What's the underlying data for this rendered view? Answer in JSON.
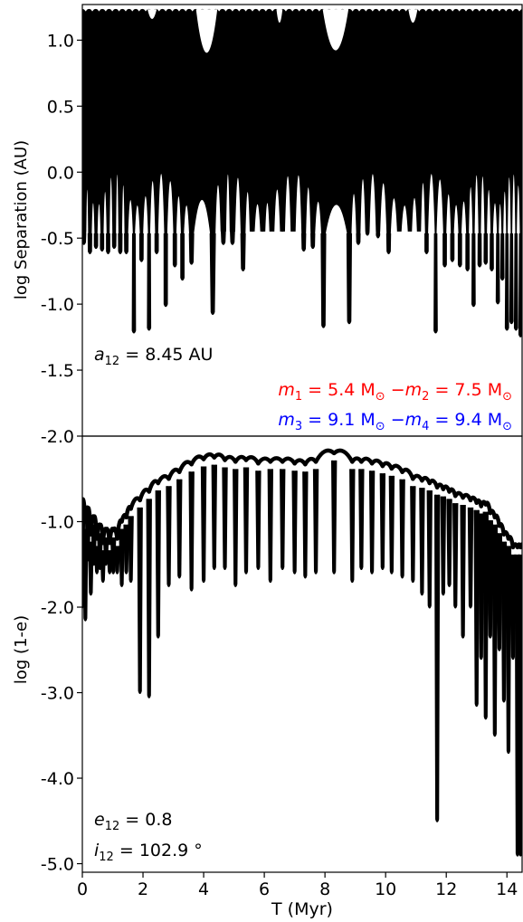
{
  "chart_data": [
    {
      "type": "line",
      "panel": "top",
      "ylabel": "log Separation (AU)",
      "xlim": [
        0,
        14.5
      ],
      "ylim": [
        -2.0,
        1.27
      ],
      "y_ticks": [
        {
          "value": 1.0,
          "label": "1.0"
        },
        {
          "value": 0.5,
          "label": "0.5"
        },
        {
          "value": 0.0,
          "label": "0.0"
        },
        {
          "value": -0.5,
          "label": "-0.5"
        },
        {
          "value": -1.0,
          "label": "-1.0"
        },
        {
          "value": -1.5,
          "label": "-1.5"
        },
        {
          "value": -2.0,
          "label": "-2.0"
        }
      ],
      "series": [
        {
          "color": "#000000",
          "upper_envelope": 1.22,
          "x": [
            0.05,
            0.25,
            0.45,
            0.65,
            0.85,
            1.05,
            1.25,
            1.45,
            1.7,
            1.95,
            2.2,
            2.45,
            2.75,
            3.05,
            3.3,
            3.6,
            4.3,
            4.65,
            4.95,
            5.3,
            5.6,
            5.95,
            6.25,
            6.6,
            6.95,
            7.3,
            7.6,
            7.95,
            8.8,
            9.1,
            9.4,
            9.75,
            10.1,
            10.45,
            10.8,
            11.1,
            11.35,
            11.65,
            11.95,
            12.2,
            12.45,
            12.7,
            12.9,
            13.1,
            13.3,
            13.5,
            13.7,
            13.85,
            14.0,
            14.15,
            14.3,
            14.45
          ],
          "min": [
            -0.55,
            -0.62,
            -0.58,
            -0.6,
            -0.62,
            -0.58,
            -0.62,
            -0.62,
            -1.22,
            -0.68,
            -1.2,
            -0.62,
            -1.02,
            -0.72,
            -0.82,
            -0.7,
            -1.08,
            -0.55,
            -0.55,
            -0.75,
            -0.45,
            -0.45,
            -0.4,
            -0.45,
            -0.42,
            -0.6,
            -0.58,
            -1.18,
            -1.15,
            -0.55,
            -0.48,
            -0.5,
            -0.62,
            -0.42,
            -0.4,
            -0.4,
            -0.62,
            -1.22,
            -0.72,
            -0.68,
            -0.72,
            -0.75,
            -1.02,
            -0.72,
            -0.7,
            -0.75,
            -1.0,
            -0.82,
            -1.2,
            -1.15,
            -1.2,
            -1.25
          ],
          "width": [
            0.16,
            0.12,
            0.1,
            0.1,
            0.1,
            0.12,
            0.12,
            0.12,
            0.07,
            0.11,
            0.07,
            0.1,
            0.1,
            0.1,
            0.1,
            0.16,
            0.18,
            0.18,
            0.18,
            0.16,
            0.16,
            0.16,
            0.16,
            0.16,
            0.16,
            0.15,
            0.15,
            0.15,
            0.15,
            0.14,
            0.14,
            0.14,
            0.14,
            0.14,
            0.13,
            0.13,
            0.1,
            0.06,
            0.1,
            0.1,
            0.1,
            0.09,
            0.07,
            0.08,
            0.08,
            0.08,
            0.06,
            0.06,
            0.05,
            0.05,
            0.05,
            0.05
          ],
          "top_dips": [
            {
              "x": 2.3,
              "y": 1.15,
              "w": 0.3
            },
            {
              "x": 4.1,
              "y": 0.88,
              "w": 0.7
            },
            {
              "x": 8.35,
              "y": 0.9,
              "w": 0.85
            },
            {
              "x": 8.35,
              "y": 0.95,
              "w": 0.35
            },
            {
              "x": 10.9,
              "y": 1.12,
              "w": 0.3
            },
            {
              "x": 6.5,
              "y": 1.12,
              "w": 0.2
            }
          ]
        }
      ],
      "annotations": {
        "a12": {
          "var": "a",
          "sub": "12",
          "rest": " = 8.45 AU"
        },
        "masses_red": {
          "m1": {
            "var": "m",
            "sub": "1",
            "rest": " = 5.4 M"
          },
          "m2": {
            "var": "m",
            "sub": "2",
            "rest": " = 7.5 M"
          },
          "sep": " −",
          "color": "#ff0000"
        },
        "masses_blue": {
          "m3": {
            "var": "m",
            "sub": "3",
            "rest": " = 9.1 M"
          },
          "m4": {
            "var": "m",
            "sub": "4",
            "rest": " = 9.4 M"
          },
          "sep": " −",
          "color": "#0000ff"
        },
        "sun_symbol": "⊙"
      }
    },
    {
      "type": "line",
      "panel": "bottom",
      "xlabel": "T (Myr)",
      "ylabel": "log (1-e)",
      "xlim": [
        0,
        14.5
      ],
      "ylim": [
        -5.1,
        0.0
      ],
      "x_ticks": [
        {
          "value": 0,
          "label": "0"
        },
        {
          "value": 2,
          "label": "2"
        },
        {
          "value": 4,
          "label": "4"
        },
        {
          "value": 6,
          "label": "6"
        },
        {
          "value": 8,
          "label": "8"
        },
        {
          "value": 10,
          "label": "10"
        },
        {
          "value": 12,
          "label": "12"
        },
        {
          "value": 14,
          "label": "14"
        }
      ],
      "y_ticks": [
        {
          "value": -1.0,
          "label": "-1.0"
        },
        {
          "value": -2.0,
          "label": "-2.0"
        },
        {
          "value": -3.0,
          "label": "-3.0"
        },
        {
          "value": -4.0,
          "label": "-4.0"
        },
        {
          "value": -5.0,
          "label": "-5.0"
        }
      ],
      "series": [
        {
          "color": "#000000",
          "x": [
            0.0,
            0.1,
            0.18,
            0.28,
            0.38,
            0.48,
            0.58,
            0.68,
            0.78,
            0.9,
            1.02,
            1.15,
            1.3,
            1.45,
            1.6,
            1.9,
            2.2,
            2.5,
            2.85,
            3.2,
            3.6,
            4.0,
            4.35,
            4.7,
            5.05,
            5.4,
            5.8,
            6.2,
            6.6,
            7.0,
            7.35,
            7.7,
            8.3,
            8.9,
            9.2,
            9.55,
            9.9,
            10.2,
            10.55,
            10.9,
            11.2,
            11.45,
            11.7,
            11.9,
            12.1,
            12.3,
            12.55,
            12.8,
            13.0,
            13.15,
            13.3,
            13.45,
            13.6,
            13.75,
            13.9,
            14.05,
            14.2,
            14.35,
            14.45
          ],
          "peak": [
            -0.75,
            -1.0,
            -0.85,
            -1.15,
            -0.95,
            -1.2,
            -1.05,
            -1.25,
            -1.1,
            -1.25,
            -1.1,
            -1.2,
            -1.0,
            -0.95,
            -0.85,
            -0.75,
            -0.65,
            -0.55,
            -0.5,
            -0.42,
            -0.33,
            -0.27,
            -0.25,
            -0.28,
            -0.3,
            -0.28,
            -0.32,
            -0.3,
            -0.3,
            -0.32,
            -0.33,
            -0.3,
            -0.2,
            -0.3,
            -0.3,
            -0.32,
            -0.35,
            -0.38,
            -0.42,
            -0.5,
            -0.52,
            -0.55,
            -0.6,
            -0.62,
            -0.65,
            -0.7,
            -0.72,
            -0.75,
            -0.78,
            -0.82,
            -0.8,
            -0.9,
            -0.95,
            -1.05,
            -1.15,
            -1.2,
            -1.3,
            -1.3,
            -1.3
          ],
          "min": [
            -2.0,
            -2.15,
            -1.45,
            -1.85,
            -1.5,
            -1.6,
            -1.55,
            -1.7,
            -1.5,
            -1.6,
            -1.6,
            -1.6,
            -1.75,
            -1.6,
            -1.7,
            -3.0,
            -3.05,
            -2.35,
            -1.75,
            -1.65,
            -1.8,
            -1.7,
            -1.55,
            -1.55,
            -1.75,
            -1.6,
            -1.55,
            -1.7,
            -1.55,
            -1.6,
            -1.65,
            -1.6,
            -1.6,
            -1.7,
            -1.55,
            -1.6,
            -1.55,
            -1.6,
            -1.65,
            -1.7,
            -1.85,
            -2.0,
            -4.5,
            -1.85,
            -1.75,
            -2.0,
            -2.35,
            -2.0,
            -3.15,
            -2.6,
            -3.3,
            -2.35,
            -3.5,
            -2.5,
            -3.1,
            -3.7,
            -2.6,
            -4.9,
            -4.9
          ]
        }
      ],
      "annotations": {
        "e12": {
          "var": "e",
          "sub": "12",
          "rest": " = 0.8"
        },
        "i12": {
          "var": "i",
          "sub": "12",
          "rest": " = 102.9 °"
        }
      }
    }
  ]
}
